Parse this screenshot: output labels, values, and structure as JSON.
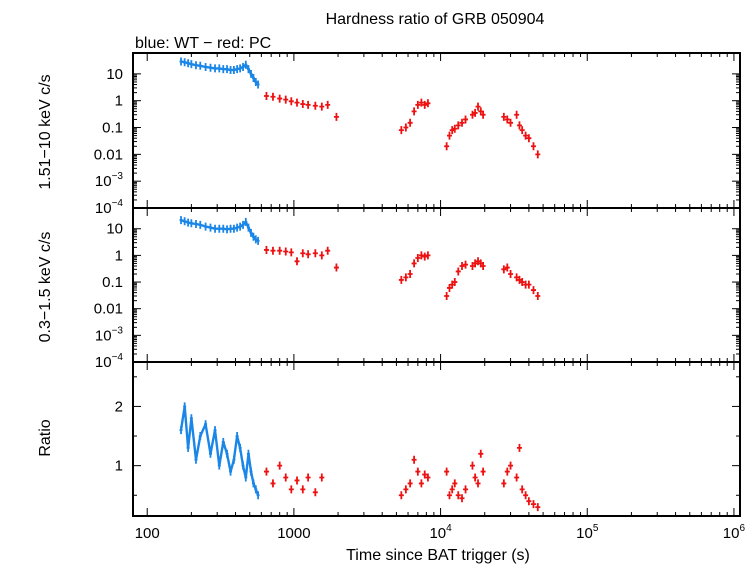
{
  "title": "Hardness ratio of GRB 050904",
  "subtitle": "blue: WT − red: PC",
  "colors": {
    "wt": "#1a86e8",
    "pc": "#ee1111",
    "axes": "#000000"
  },
  "chart_data": [
    {
      "type": "scatter",
      "panel": "top",
      "ylabel": "1.51−10 keV c/s",
      "xscale": "log",
      "yscale": "log",
      "xlim": [
        80,
        1100000
      ],
      "ylim": [
        0.0001,
        60
      ],
      "y_ticks": [
        {
          "value": 10,
          "label": "10"
        },
        {
          "value": 1,
          "label": "1"
        },
        {
          "value": 0.1,
          "label": "0.1"
        },
        {
          "value": 0.01,
          "label": "0.01"
        },
        {
          "value": 0.001,
          "label": "10",
          "sup": "−3"
        },
        {
          "value": 0.0001,
          "label": "10",
          "sup": "−4"
        }
      ],
      "series": [
        {
          "name": "WT",
          "points": [
            [
              170,
              29
            ],
            [
              180,
              27
            ],
            [
              190,
              25
            ],
            [
              200,
              23
            ],
            [
              215,
              21
            ],
            [
              230,
              20
            ],
            [
              250,
              18
            ],
            [
              270,
              17
            ],
            [
              290,
              16
            ],
            [
              310,
              16
            ],
            [
              330,
              15
            ],
            [
              350,
              15
            ],
            [
              370,
              14
            ],
            [
              390,
              14
            ],
            [
              410,
              15
            ],
            [
              430,
              16
            ],
            [
              450,
              18
            ],
            [
              470,
              22
            ],
            [
              490,
              15
            ],
            [
              510,
              10
            ],
            [
              530,
              7
            ],
            [
              550,
              5
            ],
            [
              570,
              4
            ]
          ]
        },
        {
          "name": "PC",
          "points": [
            [
              650,
              1.5
            ],
            [
              720,
              1.4
            ],
            [
              800,
              1.2
            ],
            [
              880,
              1.1
            ],
            [
              960,
              0.95
            ],
            [
              1050,
              0.85
            ],
            [
              1150,
              0.75
            ],
            [
              1250,
              0.7
            ],
            [
              1400,
              0.65
            ],
            [
              1550,
              0.6
            ],
            [
              1700,
              0.7
            ],
            [
              1950,
              0.25
            ],
            [
              5400,
              0.08
            ],
            [
              5800,
              0.1
            ],
            [
              6200,
              0.15
            ],
            [
              6600,
              0.4
            ],
            [
              7000,
              0.7
            ],
            [
              7400,
              0.85
            ],
            [
              7800,
              0.7
            ],
            [
              8200,
              0.8
            ],
            [
              11000,
              0.02
            ],
            [
              11500,
              0.05
            ],
            [
              12000,
              0.08
            ],
            [
              12500,
              0.09
            ],
            [
              13200,
              0.12
            ],
            [
              14000,
              0.15
            ],
            [
              14800,
              0.2
            ],
            [
              16500,
              0.3
            ],
            [
              17200,
              0.35
            ],
            [
              18000,
              0.6
            ],
            [
              18800,
              0.4
            ],
            [
              19500,
              0.3
            ],
            [
              27000,
              0.25
            ],
            [
              28500,
              0.2
            ],
            [
              30000,
              0.15
            ],
            [
              33000,
              0.3
            ],
            [
              34500,
              0.12
            ],
            [
              36000,
              0.08
            ],
            [
              38000,
              0.05
            ],
            [
              40000,
              0.04
            ],
            [
              43000,
              0.02
            ],
            [
              46000,
              0.01
            ]
          ]
        }
      ]
    },
    {
      "type": "scatter",
      "panel": "middle",
      "ylabel": "0.3−1.5 keV c/s",
      "xscale": "log",
      "yscale": "log",
      "xlim": [
        80,
        1100000
      ],
      "ylim": [
        0.0001,
        60
      ],
      "y_ticks": [
        {
          "value": 10,
          "label": "10"
        },
        {
          "value": 1,
          "label": "1"
        },
        {
          "value": 0.1,
          "label": "0.1"
        },
        {
          "value": 0.01,
          "label": "0.01"
        },
        {
          "value": 0.001,
          "label": "10",
          "sup": "−3"
        },
        {
          "value": 0.0001,
          "label": "10",
          "sup": "−4"
        }
      ],
      "series": [
        {
          "name": "WT",
          "points": [
            [
              170,
              21
            ],
            [
              180,
              19
            ],
            [
              190,
              17
            ],
            [
              200,
              16
            ],
            [
              215,
              15
            ],
            [
              230,
              14
            ],
            [
              250,
              12
            ],
            [
              270,
              11
            ],
            [
              290,
              10
            ],
            [
              310,
              10
            ],
            [
              330,
              10
            ],
            [
              350,
              9.5
            ],
            [
              370,
              10
            ],
            [
              390,
              10
            ],
            [
              410,
              11
            ],
            [
              430,
              12
            ],
            [
              450,
              14
            ],
            [
              470,
              18
            ],
            [
              490,
              11
            ],
            [
              510,
              7
            ],
            [
              530,
              5
            ],
            [
              550,
              4
            ],
            [
              570,
              3.5
            ]
          ]
        },
        {
          "name": "PC",
          "points": [
            [
              650,
              1.6
            ],
            [
              720,
              1.5
            ],
            [
              800,
              1.5
            ],
            [
              880,
              1.4
            ],
            [
              960,
              1.3
            ],
            [
              1050,
              0.6
            ],
            [
              1150,
              1.2
            ],
            [
              1250,
              1.1
            ],
            [
              1400,
              1.2
            ],
            [
              1550,
              1.0
            ],
            [
              1700,
              1.5
            ],
            [
              1950,
              0.35
            ],
            [
              5400,
              0.12
            ],
            [
              5800,
              0.15
            ],
            [
              6200,
              0.2
            ],
            [
              6600,
              0.5
            ],
            [
              7000,
              0.8
            ],
            [
              7400,
              1.0
            ],
            [
              7800,
              0.9
            ],
            [
              8200,
              1.0
            ],
            [
              11000,
              0.03
            ],
            [
              11500,
              0.06
            ],
            [
              12000,
              0.08
            ],
            [
              12500,
              0.1
            ],
            [
              13200,
              0.25
            ],
            [
              14000,
              0.4
            ],
            [
              14800,
              0.45
            ],
            [
              16500,
              0.4
            ],
            [
              17200,
              0.5
            ],
            [
              18000,
              0.6
            ],
            [
              18800,
              0.5
            ],
            [
              19500,
              0.4
            ],
            [
              27000,
              0.3
            ],
            [
              28500,
              0.35
            ],
            [
              30000,
              0.2
            ],
            [
              33000,
              0.15
            ],
            [
              34500,
              0.12
            ],
            [
              36000,
              0.1
            ],
            [
              38000,
              0.08
            ],
            [
              40000,
              0.08
            ],
            [
              43000,
              0.05
            ],
            [
              46000,
              0.03
            ]
          ]
        }
      ]
    },
    {
      "type": "scatter",
      "panel": "bottom",
      "ylabel": "Ratio",
      "xlabel": "Time since BAT trigger (s)",
      "xscale": "log",
      "yscale": "linear",
      "xlim": [
        80,
        1100000
      ],
      "ylim": [
        0.15,
        2.75
      ],
      "y_ticks": [
        {
          "value": 2,
          "label": "2"
        },
        {
          "value": 1,
          "label": "1"
        }
      ],
      "x_ticks": [
        {
          "value": 100,
          "label": "100"
        },
        {
          "value": 1000,
          "label": "1000"
        },
        {
          "value": 10000,
          "label": "10",
          "sup": "4"
        },
        {
          "value": 100000,
          "label": "10",
          "sup": "5"
        },
        {
          "value": 1000000,
          "label": "10",
          "sup": "6"
        }
      ],
      "series": [
        {
          "name": "WT",
          "points": [
            [
              170,
              1.6
            ],
            [
              180,
              2.0
            ],
            [
              190,
              1.3
            ],
            [
              200,
              1.8
            ],
            [
              215,
              1.1
            ],
            [
              230,
              1.5
            ],
            [
              250,
              1.7
            ],
            [
              270,
              1.2
            ],
            [
              290,
              1.6
            ],
            [
              310,
              1.0
            ],
            [
              330,
              1.4
            ],
            [
              350,
              1.2
            ],
            [
              370,
              0.9
            ],
            [
              390,
              1.1
            ],
            [
              410,
              1.5
            ],
            [
              430,
              1.3
            ],
            [
              450,
              1.0
            ],
            [
              470,
              0.8
            ],
            [
              490,
              1.2
            ],
            [
              510,
              0.9
            ],
            [
              530,
              0.7
            ],
            [
              550,
              0.6
            ],
            [
              570,
              0.5
            ]
          ]
        },
        {
          "name": "PC",
          "points": [
            [
              650,
              0.9
            ],
            [
              720,
              0.7
            ],
            [
              800,
              1.0
            ],
            [
              880,
              0.8
            ],
            [
              960,
              0.6
            ],
            [
              1050,
              0.75
            ],
            [
              1150,
              0.6
            ],
            [
              1250,
              0.8
            ],
            [
              1400,
              0.55
            ],
            [
              1550,
              0.8
            ],
            [
              5400,
              0.5
            ],
            [
              5800,
              0.6
            ],
            [
              6200,
              0.7
            ],
            [
              6600,
              1.1
            ],
            [
              7000,
              0.9
            ],
            [
              7400,
              0.7
            ],
            [
              7800,
              0.85
            ],
            [
              8200,
              0.8
            ],
            [
              11000,
              0.9
            ],
            [
              11500,
              0.5
            ],
            [
              12000,
              0.6
            ],
            [
              12500,
              0.7
            ],
            [
              13200,
              0.5
            ],
            [
              14000,
              0.45
            ],
            [
              14800,
              0.6
            ],
            [
              16500,
              1.0
            ],
            [
              17200,
              0.8
            ],
            [
              18000,
              0.7
            ],
            [
              18800,
              1.2
            ],
            [
              19500,
              0.9
            ],
            [
              27000,
              0.7
            ],
            [
              28500,
              0.9
            ],
            [
              30000,
              1.0
            ],
            [
              33000,
              0.8
            ],
            [
              34500,
              1.3
            ],
            [
              36000,
              0.6
            ],
            [
              38000,
              0.5
            ],
            [
              40000,
              0.4
            ],
            [
              43000,
              0.35
            ],
            [
              46000,
              0.3
            ]
          ]
        }
      ]
    }
  ]
}
